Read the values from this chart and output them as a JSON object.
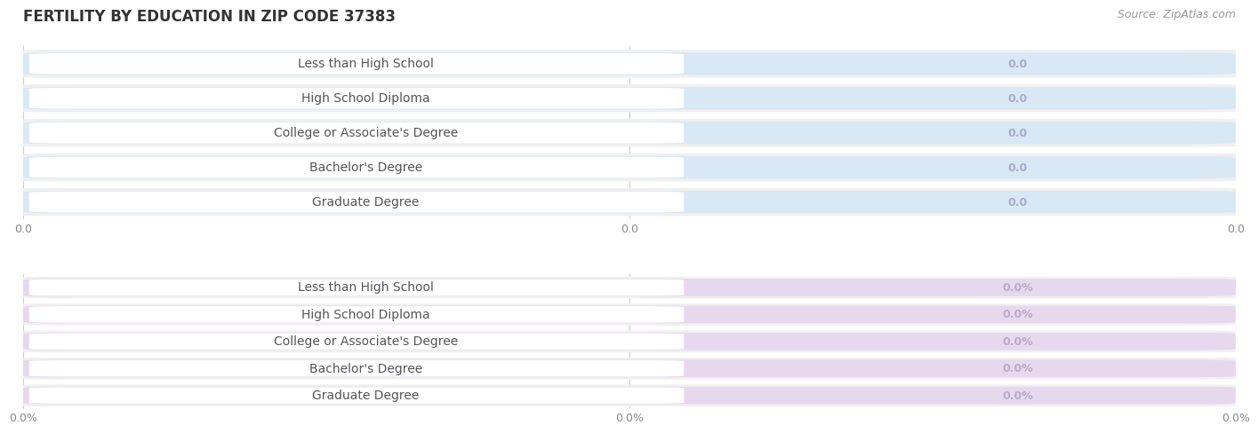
{
  "title": "FERTILITY BY EDUCATION IN ZIP CODE 37383",
  "source": "Source: ZipAtlas.com",
  "categories": [
    "Less than High School",
    "High School Diploma",
    "College or Associate's Degree",
    "Bachelor's Degree",
    "Graduate Degree"
  ],
  "top_values": [
    0.0,
    0.0,
    0.0,
    0.0,
    0.0
  ],
  "top_bar_color": "#adc8e8",
  "top_bar_bg": "#d8e8f5",
  "top_label_color": "#555555",
  "top_value_color": "#aaaacc",
  "bottom_values": [
    0.0,
    0.0,
    0.0,
    0.0,
    0.0
  ],
  "bottom_bar_color": "#c9a8cc",
  "bottom_bar_bg": "#e8d8ee",
  "bottom_label_color": "#555555",
  "bottom_value_color": "#bbaacc",
  "background_color": "#ffffff",
  "row_bg_color": "#f0f0f0",
  "gap_color": "#ffffff",
  "top_xtick_labels": [
    "0.0",
    "0.0",
    "0.0"
  ],
  "bottom_xtick_labels": [
    "0.0%",
    "0.0%",
    "0.0%"
  ],
  "title_fontsize": 12,
  "label_fontsize": 10,
  "value_fontsize": 9,
  "tick_fontsize": 9,
  "source_fontsize": 9
}
